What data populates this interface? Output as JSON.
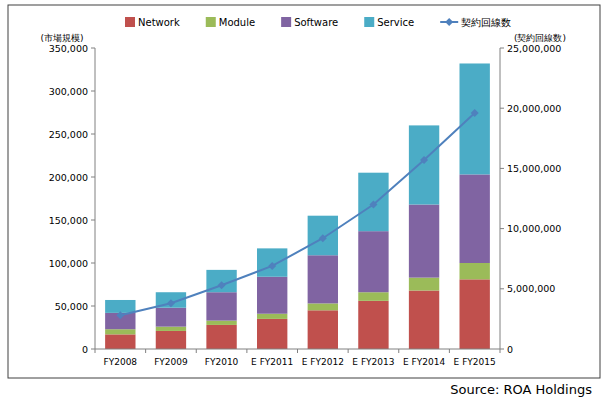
{
  "chart_data": {
    "type": "bar",
    "stacked": true,
    "grid": false,
    "legend": "top",
    "ylabel": "(市場規模)",
    "y2label": "(契約回線数)",
    "source": "Source: ROA Holdings",
    "categories": [
      "FY2008",
      "FY2009",
      "FY2010",
      "E FY2011",
      "E FY2012",
      "E FY2013",
      "E FY2014",
      "E FY2015"
    ],
    "series": [
      {
        "name": "Network",
        "color": "#c0504d",
        "values": [
          17000,
          21000,
          28000,
          35000,
          45000,
          56000,
          68000,
          81000
        ]
      },
      {
        "name": "Module",
        "color": "#9bbb59",
        "values": [
          6000,
          5000,
          5000,
          6000,
          8000,
          10000,
          15000,
          19000
        ]
      },
      {
        "name": "Software",
        "color": "#8064a2",
        "values": [
          19000,
          22000,
          33000,
          43000,
          56000,
          71000,
          85000,
          103000
        ]
      },
      {
        "name": "Service",
        "color": "#4bacc6",
        "values": [
          15000,
          18000,
          26000,
          33000,
          46000,
          68000,
          92000,
          129000
        ]
      },
      {
        "name": "契約回線数",
        "type": "line",
        "axis": "y2",
        "color": "#4f81bd",
        "marker": "diamond",
        "values": [
          2800000,
          3800000,
          5300000,
          6900000,
          9200000,
          12000000,
          15700000,
          19600000
        ]
      }
    ],
    "ylim": [
      0,
      350000
    ],
    "yticks": [
      0,
      {
        "value": 50000,
        "label": "50,000"
      },
      {
        "value": 100000,
        "label": "100,000"
      },
      {
        "value": 150000,
        "label": "150,000"
      },
      {
        "value": 200000,
        "label": "200,000"
      },
      {
        "value": 250000,
        "label": "250,000"
      },
      {
        "value": 300000,
        "label": "300,000"
      },
      {
        "value": 350000,
        "label": "350,000"
      }
    ],
    "y2lim": [
      0,
      25000000
    ],
    "y2ticks": [
      0,
      {
        "value": 5000000,
        "label": "5,000,000"
      },
      {
        "value": 10000000,
        "label": "10,000,000"
      },
      {
        "value": 15000000,
        "label": "15,000,000"
      },
      {
        "value": 20000000,
        "label": "20,000,000"
      },
      {
        "value": 25000000,
        "label": "25,000,000"
      }
    ]
  }
}
